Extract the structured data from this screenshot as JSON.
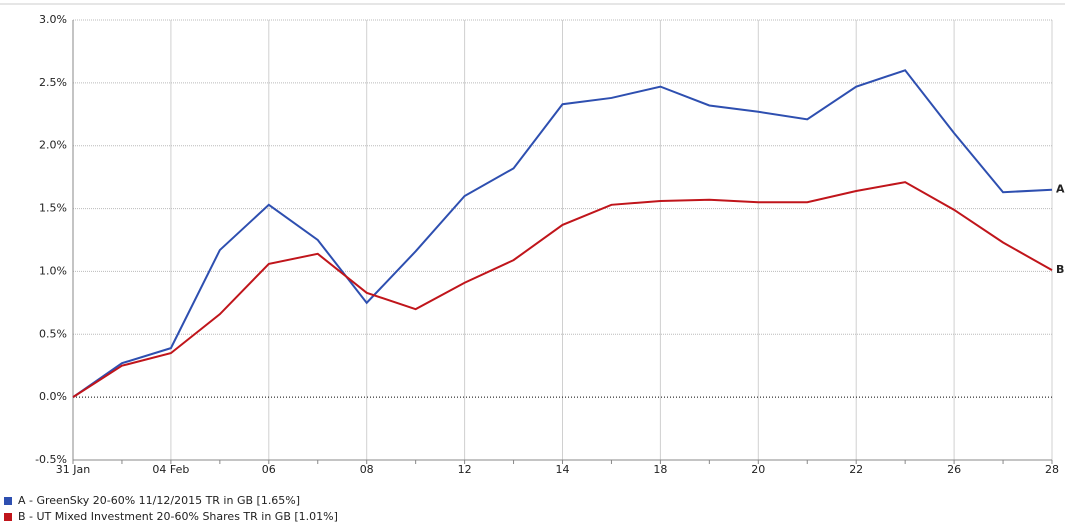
{
  "chart_data": {
    "type": "line",
    "categories": [
      "31 Jan",
      null,
      "04 Feb",
      null,
      "06",
      null,
      "08",
      null,
      "12",
      null,
      "14",
      null,
      "18",
      null,
      "20",
      null,
      "22",
      null,
      "26",
      null,
      "28"
    ],
    "series": [
      {
        "name": "A - GreenSky 20-60% 11/12/2015 TR in GB [1.65%]",
        "label": "A",
        "color": "#2e4fb0",
        "values": [
          0,
          0.27,
          0.39,
          1.17,
          1.53,
          1.25,
          0.75,
          1.16,
          1.6,
          1.82,
          2.33,
          2.38,
          2.47,
          2.32,
          2.27,
          2.21,
          2.47,
          2.6,
          2.1,
          1.63,
          1.65
        ]
      },
      {
        "name": "B - UT Mixed Investment 20-60% Shares TR in GB [1.01%]",
        "label": "B",
        "color": "#c0151b",
        "values": [
          0,
          0.25,
          0.35,
          0.66,
          1.06,
          1.14,
          0.83,
          0.7,
          0.91,
          1.09,
          1.37,
          1.53,
          1.56,
          1.57,
          1.55,
          1.55,
          1.64,
          1.71,
          1.49,
          1.23,
          1.01
        ]
      }
    ],
    "ylim": [
      -0.5,
      3.0
    ],
    "yticks": [
      {
        "value": -0.5,
        "label": "-0.5%"
      },
      {
        "value": 0,
        "label": "0.0%"
      },
      {
        "value": 0.5,
        "label": "0.5%"
      },
      {
        "value": 1,
        "label": "1.0%"
      },
      {
        "value": 1.5,
        "label": "1.5%"
      },
      {
        "value": 2,
        "label": "2.0%"
      },
      {
        "value": 2.5,
        "label": "2.5%"
      },
      {
        "value": 3,
        "label": "3.0%"
      }
    ],
    "grid": true
  }
}
